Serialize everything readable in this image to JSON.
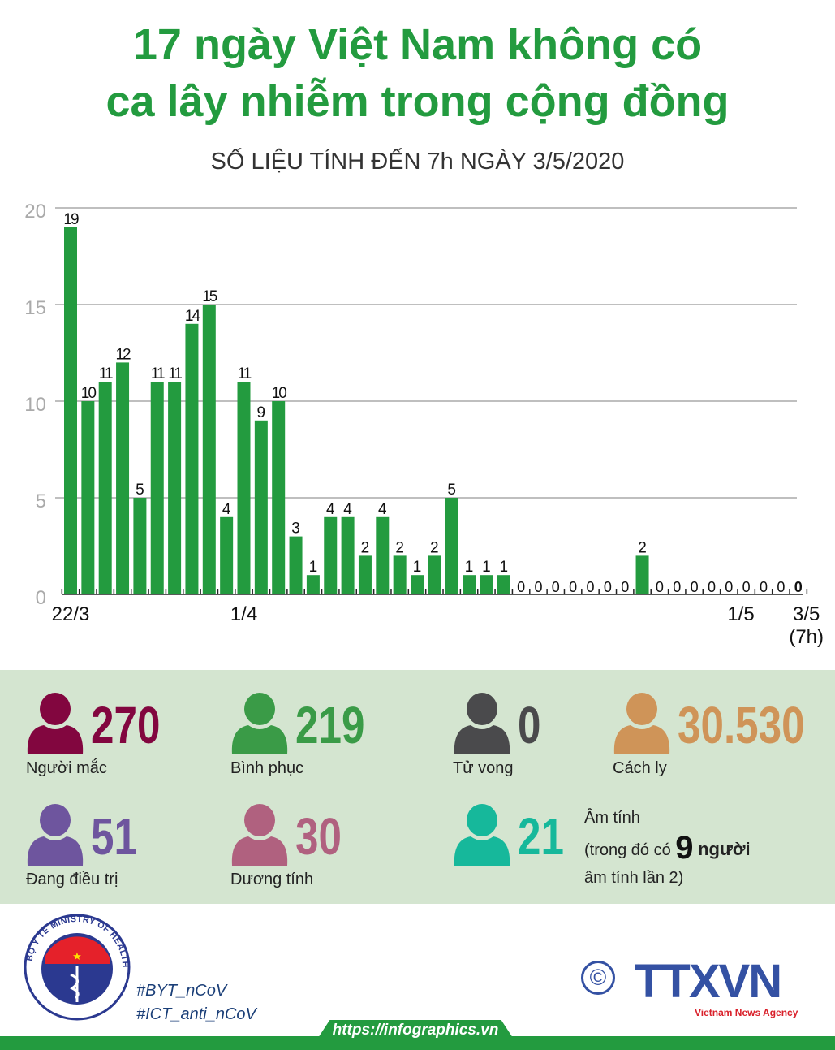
{
  "header": {
    "title_line1": "17 ngày Việt Nam không có",
    "title_line2": "ca lây nhiễm trong cộng đồng",
    "subtitle": "SỐ LIỆU TÍNH ĐẾN 7h NGÀY 3/5/2020"
  },
  "chart_data": {
    "type": "bar",
    "values": [
      19,
      10,
      11,
      12,
      5,
      11,
      11,
      14,
      15,
      4,
      11,
      9,
      10,
      3,
      1,
      4,
      4,
      2,
      4,
      2,
      1,
      2,
      5,
      1,
      1,
      1,
      0,
      0,
      0,
      0,
      0,
      0,
      0,
      2,
      0,
      0,
      0,
      0,
      0,
      0,
      0,
      0,
      0
    ],
    "x_labels": [
      {
        "index": 0,
        "text": "22/3"
      },
      {
        "index": 10,
        "text": "1/4"
      },
      {
        "index": 40,
        "text": "1/5"
      },
      {
        "index": 42,
        "text": "3/5"
      }
    ],
    "x_label_note": "(7h)",
    "yticks": [
      0,
      5,
      10,
      15,
      20
    ],
    "ylim": [
      0,
      20
    ],
    "grid": true,
    "bar_color": "#239b3f"
  },
  "stats": [
    {
      "value": "270",
      "label": "Người mắc",
      "color": "#82063f",
      "icon": "person-icon"
    },
    {
      "value": "219",
      "label": "Bình phục",
      "color": "#3a9b47",
      "icon": "person-icon"
    },
    {
      "value": "0",
      "label": "Tử vong",
      "color": "#4a4a4c",
      "icon": "person-icon"
    },
    {
      "value": "30.530",
      "label": "Cách ly",
      "color": "#cf9458",
      "icon": "person-icon"
    },
    {
      "value": "51",
      "label": "Đang điều trị",
      "color": "#6e559e",
      "icon": "person-icon"
    },
    {
      "value": "30",
      "label": "Dương tính",
      "color": "#b0617f",
      "icon": "person-icon"
    },
    {
      "value": "21",
      "label": "",
      "color": "#16b89b",
      "icon": "person-icon"
    }
  ],
  "negative": {
    "line1": "Âm tính",
    "line2_pre": "(trong đó có",
    "count": "9",
    "line2_post": "người",
    "line3": "âm tính lần 2)"
  },
  "footer": {
    "tag1": "#BYT_nCoV",
    "tag2": "#ICT_anti_nCoV",
    "url": "https://infographics.vn",
    "copyright": "©",
    "agency": "TTXVN",
    "agency_sub": "Vietnam News Agency",
    "ministry_logo_text": "BỘ Y TẾ MINISTRY OF HEALTH"
  }
}
